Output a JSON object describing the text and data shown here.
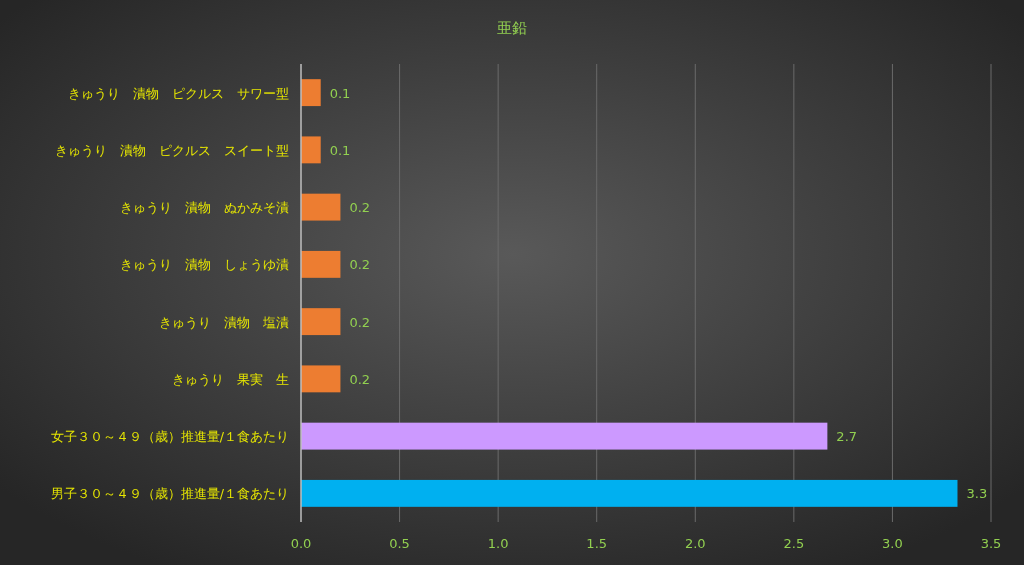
{
  "chart_data": {
    "type": "bar",
    "orientation": "horizontal",
    "title": "亜鉛",
    "categories": [
      "きゅうり　漬物　ピクルス　サワー型",
      "きゅうり　漬物　ピクルス　スイート型",
      "きゅうり　漬物　ぬかみそ漬",
      "きゅうり　漬物　しょうゆ漬",
      "きゅうり　漬物　塩漬",
      "きゅうり　果実　生",
      "女子３０～４９（歳）推進量/１食あたり",
      "男子３０～４９（歳）推進量/１食あたり"
    ],
    "values": [
      0.1,
      0.1,
      0.2,
      0.2,
      0.2,
      0.2,
      2.67,
      3.33
    ],
    "value_labels": [
      "0.1",
      "0.1",
      "0.2",
      "0.2",
      "0.2",
      "0.2",
      "2.7",
      "3.3"
    ],
    "colors": [
      "#ed7d31",
      "#ed7d31",
      "#ed7d31",
      "#ed7d31",
      "#ed7d31",
      "#ed7d31",
      "#cc99ff",
      "#00b0f0"
    ],
    "xlim": [
      0,
      3.5
    ],
    "xticks": [
      {
        "value": 0,
        "label": "0.0"
      },
      {
        "value": 0.5,
        "label": "0.5"
      },
      {
        "value": 1,
        "label": "1.0"
      },
      {
        "value": 1.5,
        "label": "1.5"
      },
      {
        "value": 2,
        "label": "2.0"
      },
      {
        "value": 2.5,
        "label": "2.5"
      },
      {
        "value": 3,
        "label": "3.0"
      },
      {
        "value": 3.5,
        "label": "3.5"
      }
    ],
    "grid": "x"
  }
}
